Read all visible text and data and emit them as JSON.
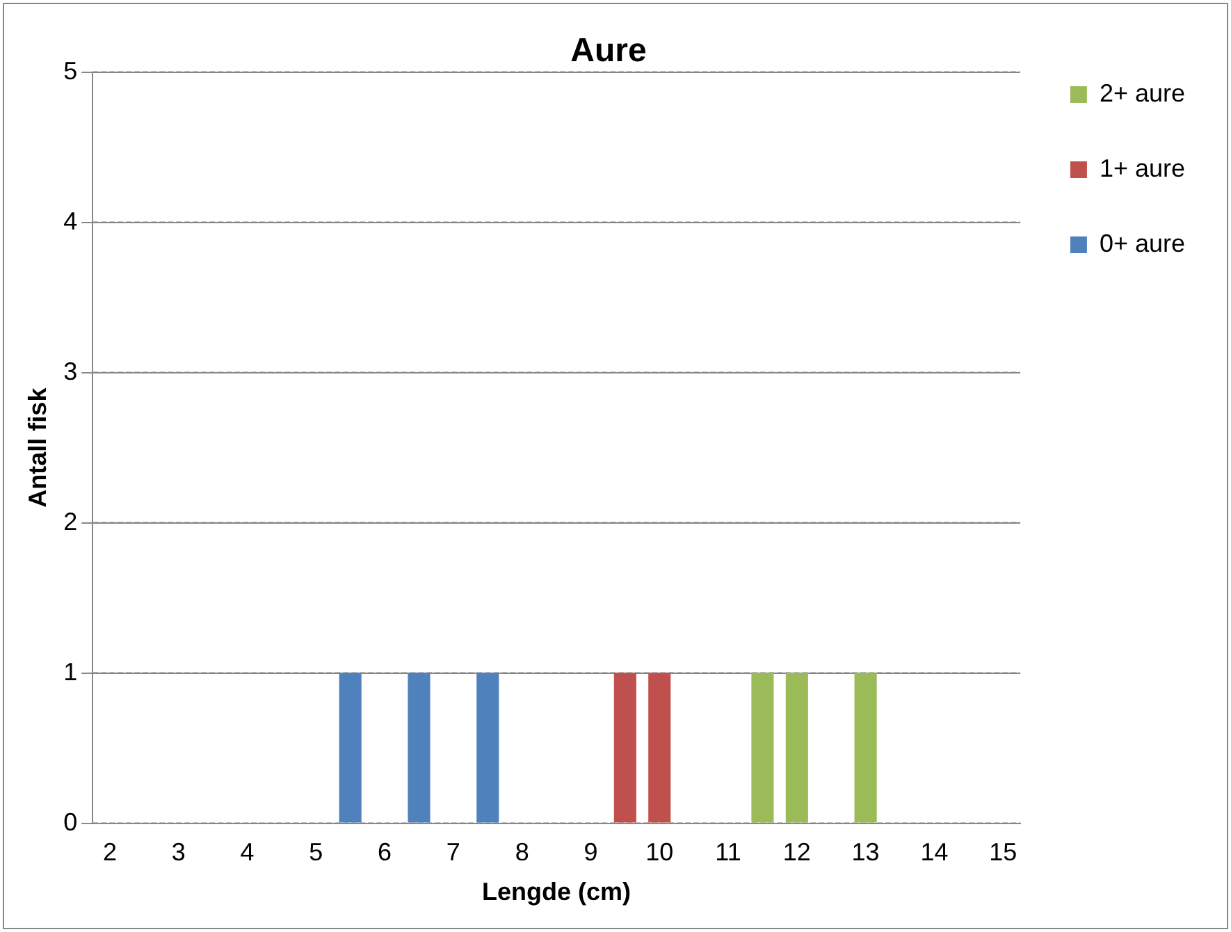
{
  "chart_data": {
    "type": "bar",
    "title": "Aure",
    "xlabel": "Lengde (cm)",
    "ylabel": "Antall fisk",
    "categories": [
      "2",
      null,
      "3",
      null,
      "4",
      null,
      "5",
      null,
      "6",
      null,
      "7",
      null,
      "8",
      null,
      "9",
      null,
      "10",
      null,
      "11",
      null,
      "12",
      null,
      "13",
      null,
      "14",
      null,
      "15"
    ],
    "stacked": true,
    "series": [
      {
        "name": "0+ aure",
        "color": "#4f81bd",
        "values": [
          null,
          null,
          null,
          null,
          null,
          null,
          null,
          1,
          null,
          1,
          null,
          1,
          null,
          null,
          null,
          null,
          null,
          null,
          null,
          null,
          null,
          null,
          null,
          null,
          null,
          null,
          null
        ]
      },
      {
        "name": "1+ aure",
        "color": "#c0504d",
        "values": [
          null,
          null,
          null,
          null,
          null,
          null,
          null,
          null,
          null,
          null,
          null,
          null,
          null,
          null,
          null,
          1,
          1,
          null,
          null,
          null,
          null,
          null,
          null,
          null,
          null,
          null,
          null
        ]
      },
      {
        "name": "2+ aure",
        "color": "#9bbb59",
        "values": [
          null,
          null,
          null,
          null,
          null,
          null,
          null,
          null,
          null,
          null,
          null,
          null,
          null,
          null,
          null,
          null,
          null,
          null,
          null,
          1,
          1,
          null,
          1,
          null,
          null,
          null,
          null
        ]
      }
    ],
    "ylim": [
      0,
      5
    ],
    "yticks": [
      0,
      1,
      2,
      3,
      4,
      5
    ],
    "grid": "y",
    "legend": "right"
  }
}
